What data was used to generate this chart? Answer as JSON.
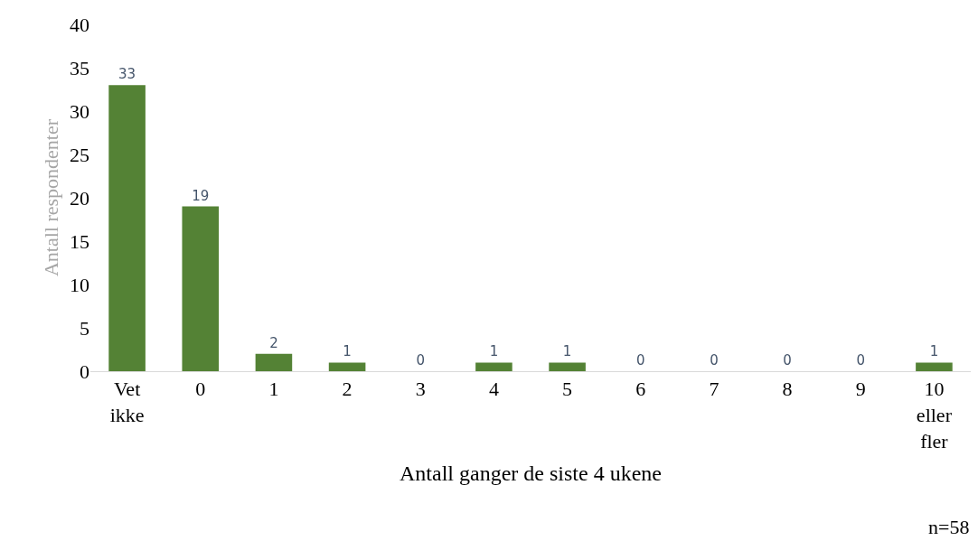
{
  "chart_data": {
    "type": "bar",
    "xlabel": "Antall ganger de siste 4 ukene",
    "ylabel": "Antall respondenter",
    "categories": [
      "Vet ikke",
      "0",
      "1",
      "2",
      "3",
      "4",
      "5",
      "6",
      "7",
      "8",
      "9",
      "10 eller fler"
    ],
    "values": [
      33,
      19,
      2,
      1,
      0,
      1,
      1,
      0,
      0,
      0,
      0,
      1
    ],
    "color": "#548235",
    "ylim": [
      0,
      40
    ],
    "yticks": [
      0,
      5,
      10,
      15,
      20,
      25,
      30,
      35,
      40
    ],
    "grid": false,
    "legend": false,
    "data_labels": true,
    "annotations": [
      "n=58"
    ]
  }
}
